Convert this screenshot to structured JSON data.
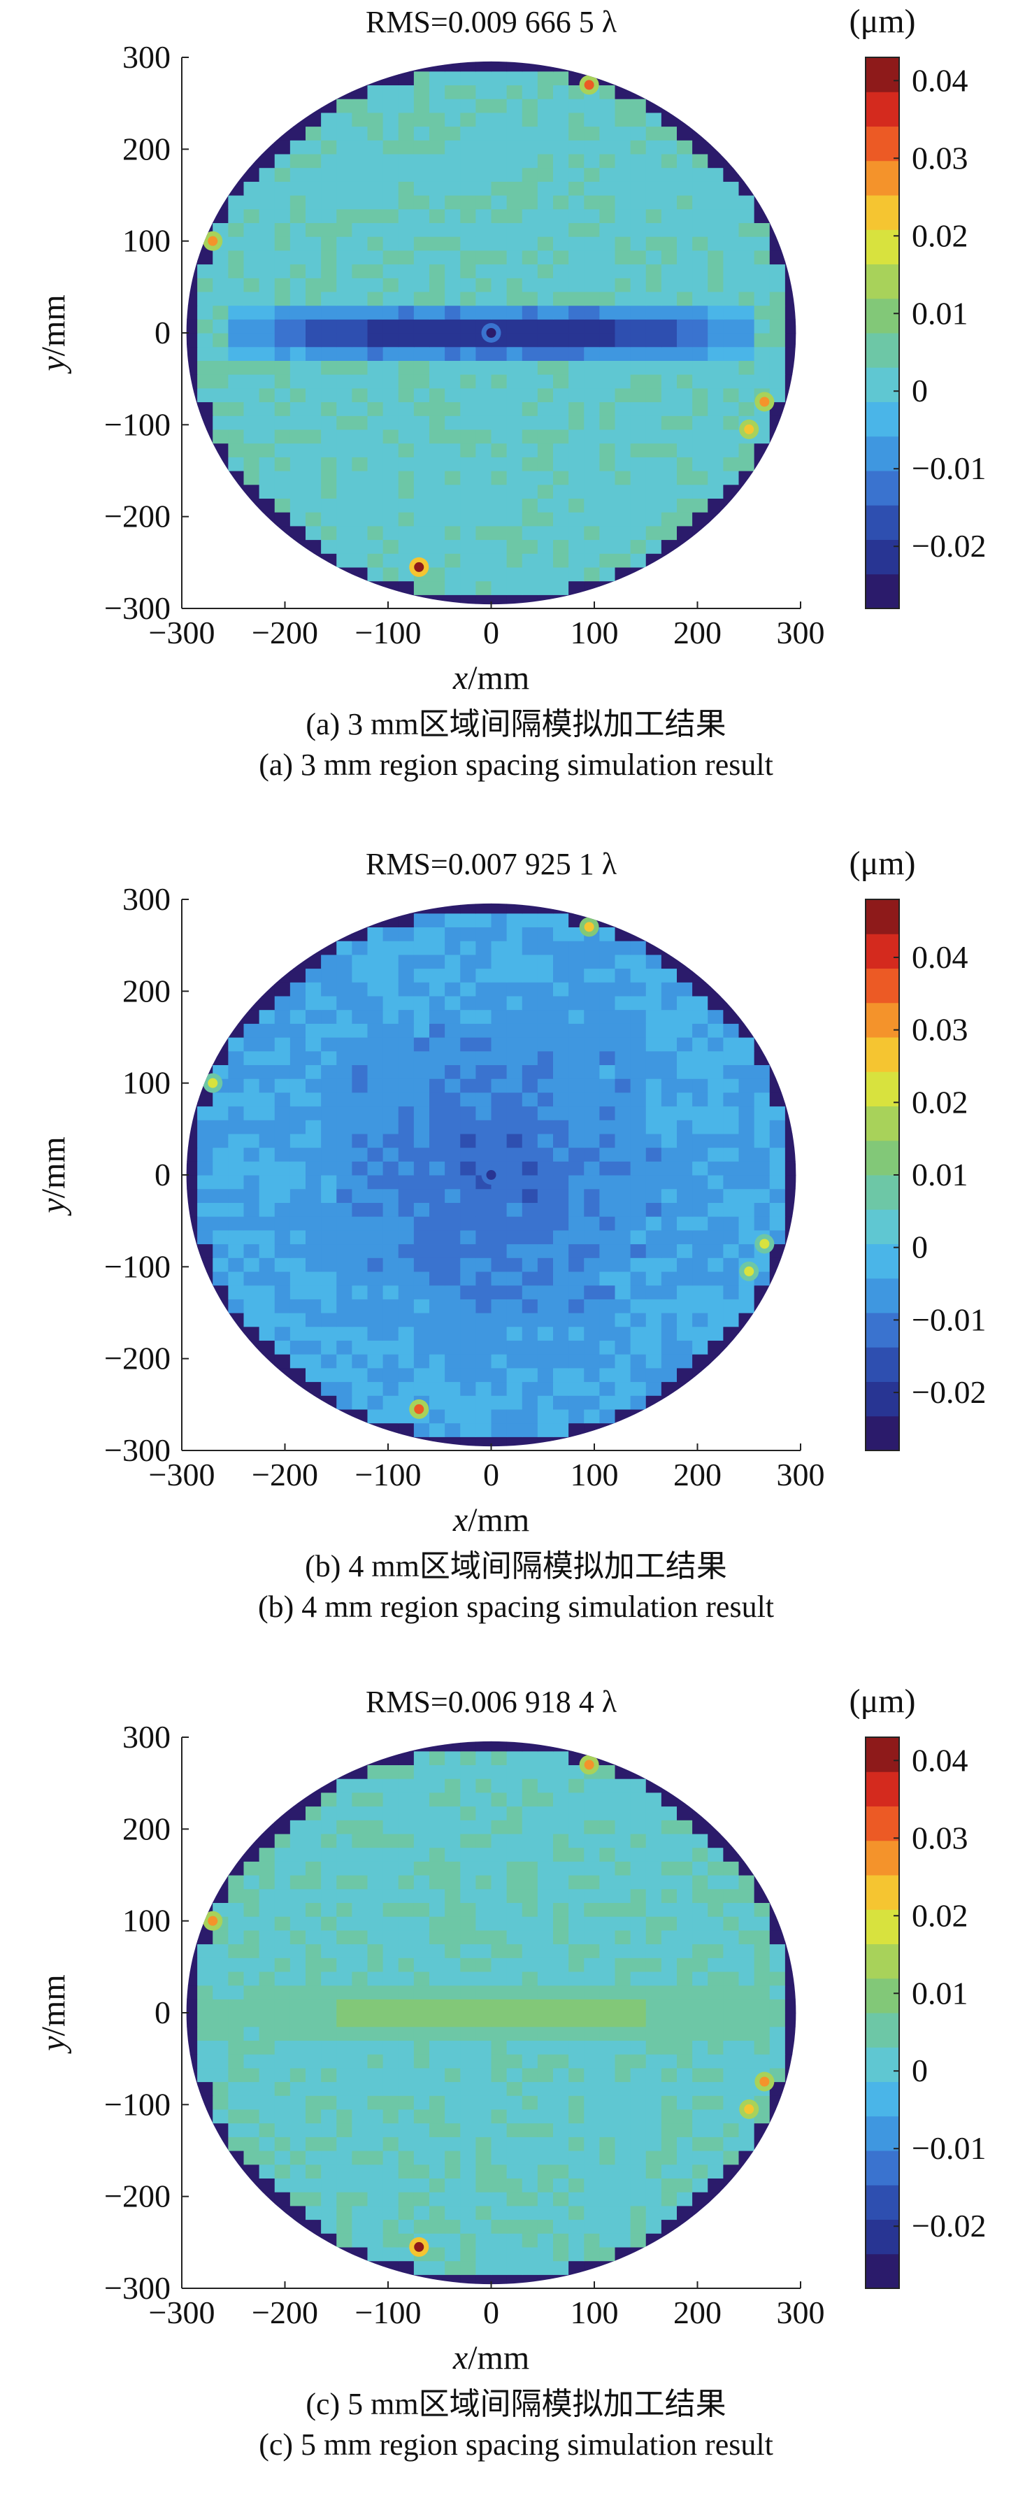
{
  "figure": {
    "panels": [
      {
        "title": "RMS=0.009 666 5 λ",
        "unit_label": "(μm)",
        "xlabel_var": "x",
        "xlabel_unit": "/mm",
        "ylabel_var": "y",
        "ylabel_unit": "/mm",
        "caption_cn": "(a) 3 mm区域间隔模拟加工结果",
        "caption_en": "(a) 3 mm region spacing simulation result",
        "pattern": "horizontal-blue-band"
      },
      {
        "title": "RMS=0.007 925 1 λ",
        "unit_label": "(μm)",
        "xlabel_var": "x",
        "xlabel_unit": "/mm",
        "ylabel_var": "y",
        "ylabel_unit": "/mm",
        "caption_cn": "(b) 4 mm区域间隔模拟加工结果",
        "caption_en": "(b) 4 mm region spacing simulation result",
        "pattern": "central-blue-depression"
      },
      {
        "title": "RMS=0.006 918 4 λ",
        "unit_label": "(μm)",
        "xlabel_var": "x",
        "xlabel_unit": "/mm",
        "ylabel_var": "y",
        "ylabel_unit": "/mm",
        "caption_cn": "(c) 5 mm区域间隔模拟加工结果",
        "caption_en": "(c) 5 mm region spacing simulation result",
        "pattern": "horizontal-green-band"
      }
    ],
    "colormap": [
      "#2b1b6b",
      "#283593",
      "#2e4fb0",
      "#3a73cf",
      "#3f97e0",
      "#4ab5e8",
      "#5fc7d2",
      "#6dc7a6",
      "#82c878",
      "#a8d25a",
      "#d8e23e",
      "#f5c531",
      "#f4932b",
      "#ec5a25",
      "#d42a1e",
      "#8e1a1a"
    ]
  },
  "chart_data": [
    {
      "type": "heatmap",
      "title": "RMS=0.009 666 5 λ",
      "xlabel": "x/mm",
      "ylabel": "y/mm",
      "colorbar_label": "(μm)",
      "xlim": [
        -300,
        300
      ],
      "ylim": [
        -300,
        300
      ],
      "xticks": [
        -300,
        -200,
        -100,
        0,
        100,
        200,
        300
      ],
      "yticks": [
        -300,
        -200,
        -100,
        0,
        100,
        200,
        300
      ],
      "colorbar_range": [
        -0.028,
        0.043
      ],
      "colorbar_ticks": [
        0.04,
        0.03,
        0.02,
        0.01,
        0,
        -0.01,
        -0.02
      ],
      "aperture_radius_mm": 300,
      "background_level_um": 0.002,
      "features": [
        {
          "kind": "horizontal-band",
          "x_range": [
            -260,
            260
          ],
          "y_center": 0,
          "level_um": -0.02
        },
        {
          "kind": "spot",
          "x": 0,
          "y": 0,
          "level_um": -0.028
        },
        {
          "kind": "spot",
          "x": 95,
          "y": 270,
          "level_um": 0.03
        },
        {
          "kind": "spot",
          "x": -270,
          "y": 100,
          "level_um": 0.028
        },
        {
          "kind": "spot",
          "x": 265,
          "y": -75,
          "level_um": 0.028
        },
        {
          "kind": "spot",
          "x": 250,
          "y": -105,
          "level_um": 0.025
        },
        {
          "kind": "spot",
          "x": -70,
          "y": -255,
          "level_um": 0.04
        }
      ]
    },
    {
      "type": "heatmap",
      "title": "RMS=0.007 925 1 λ",
      "xlabel": "x/mm",
      "ylabel": "y/mm",
      "colorbar_label": "(μm)",
      "xlim": [
        -300,
        300
      ],
      "ylim": [
        -300,
        300
      ],
      "xticks": [
        -300,
        -200,
        -100,
        0,
        100,
        200,
        300
      ],
      "yticks": [
        -300,
        -200,
        -100,
        0,
        100,
        200,
        300
      ],
      "colorbar_range": [
        -0.028,
        0.048
      ],
      "colorbar_ticks": [
        0.04,
        0.03,
        0.02,
        0.01,
        0,
        -0.01,
        -0.02
      ],
      "aperture_radius_mm": 300,
      "background_level_um": -0.004,
      "features": [
        {
          "kind": "radial-depression",
          "x": 0,
          "y": 0,
          "radius": 230,
          "level_um": -0.014
        },
        {
          "kind": "spot",
          "x": 0,
          "y": 0,
          "level_um": -0.02
        },
        {
          "kind": "spot",
          "x": 95,
          "y": 270,
          "level_um": 0.025
        },
        {
          "kind": "spot",
          "x": -270,
          "y": 100,
          "level_um": 0.02
        },
        {
          "kind": "spot",
          "x": 265,
          "y": -75,
          "level_um": 0.022
        },
        {
          "kind": "spot",
          "x": 250,
          "y": -105,
          "level_um": 0.02
        },
        {
          "kind": "spot",
          "x": -70,
          "y": -255,
          "level_um": 0.035
        }
      ]
    },
    {
      "type": "heatmap",
      "title": "RMS=0.006 918 4 λ",
      "xlabel": "x/mm",
      "ylabel": "y/mm",
      "colorbar_label": "(μm)",
      "xlim": [
        -300,
        300
      ],
      "ylim": [
        -300,
        300
      ],
      "xticks": [
        -300,
        -200,
        -100,
        0,
        100,
        200,
        300
      ],
      "yticks": [
        -300,
        -200,
        -100,
        0,
        100,
        200,
        300
      ],
      "colorbar_range": [
        -0.028,
        0.043
      ],
      "colorbar_ticks": [
        0.04,
        0.03,
        0.02,
        0.01,
        0,
        -0.01,
        -0.02
      ],
      "aperture_radius_mm": 300,
      "background_level_um": 0.002,
      "features": [
        {
          "kind": "horizontal-band",
          "x_range": [
            -285,
            285
          ],
          "y_center": 0,
          "level_um": 0.008
        },
        {
          "kind": "spot",
          "x": 95,
          "y": 270,
          "level_um": 0.028
        },
        {
          "kind": "spot",
          "x": -270,
          "y": 100,
          "level_um": 0.028
        },
        {
          "kind": "spot",
          "x": 265,
          "y": -75,
          "level_um": 0.028
        },
        {
          "kind": "spot",
          "x": 250,
          "y": -105,
          "level_um": 0.025
        },
        {
          "kind": "spot",
          "x": -70,
          "y": -255,
          "level_um": 0.04
        }
      ]
    }
  ]
}
